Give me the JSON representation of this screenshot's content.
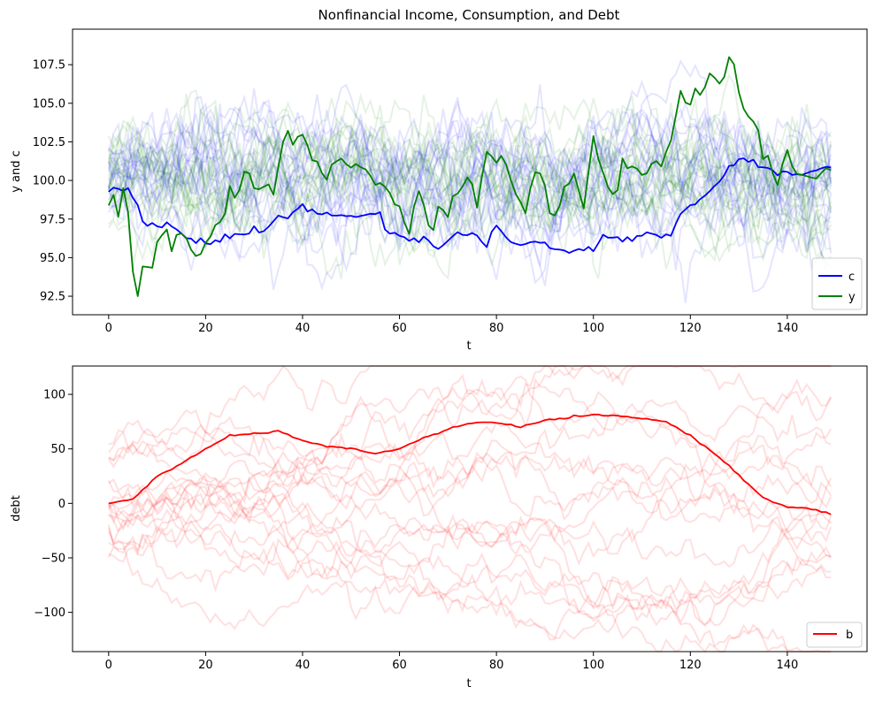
{
  "chart_data": [
    {
      "type": "line",
      "title": "Nonfinancial Income, Consumption, and Debt",
      "xlabel": "t",
      "ylabel": "y and c",
      "xlim": [
        -7.45,
        156.45
      ],
      "ylim": [
        91.3,
        109.8
      ],
      "xticks": [
        0,
        20,
        40,
        60,
        80,
        100,
        120,
        140
      ],
      "xtick_labels": [
        "0",
        "20",
        "40",
        "60",
        "80",
        "100",
        "120",
        "140"
      ],
      "yticks": [
        92.5,
        95.0,
        97.5,
        100.0,
        102.5,
        105.0,
        107.5
      ],
      "ytick_labels": [
        "92.5",
        "95.0",
        "97.5",
        "100.0",
        "102.5",
        "105.0",
        "107.5"
      ],
      "grid": false,
      "legend_position": "lower-right",
      "series": [
        {
          "name": "c",
          "color": "#0000ff",
          "x_start": 0,
          "x_step": 1,
          "knots": [
            [
              0,
              99.5
            ],
            [
              3,
              99.5
            ],
            [
              5,
              98.8
            ],
            [
              8,
              97.0
            ],
            [
              12,
              97.2
            ],
            [
              18,
              96.0
            ],
            [
              20,
              95.9
            ],
            [
              22,
              96.0
            ],
            [
              30,
              96.8
            ],
            [
              32,
              96.6
            ],
            [
              34,
              97.4
            ],
            [
              40,
              98.2
            ],
            [
              45,
              97.7
            ],
            [
              50,
              97.7
            ],
            [
              55,
              98.1
            ],
            [
              58,
              96.5
            ],
            [
              62,
              96.0
            ],
            [
              65,
              96.2
            ],
            [
              68,
              95.7
            ],
            [
              72,
              96.6
            ],
            [
              76,
              96.3
            ],
            [
              78,
              95.7
            ],
            [
              80,
              97.2
            ],
            [
              82,
              96.3
            ],
            [
              86,
              95.6
            ],
            [
              88,
              95.9
            ],
            [
              90,
              96.1
            ],
            [
              92,
              95.6
            ],
            [
              94,
              95.5
            ],
            [
              100,
              95.6
            ],
            [
              102,
              96.5
            ],
            [
              104,
              96.2
            ],
            [
              106,
              95.9
            ],
            [
              108,
              96.4
            ],
            [
              112,
              96.5
            ],
            [
              116,
              96.5
            ],
            [
              118,
              97.6
            ],
            [
              122,
              98.8
            ],
            [
              126,
              100.0
            ],
            [
              130,
              101.4
            ],
            [
              134,
              101.0
            ],
            [
              138,
              100.5
            ],
            [
              142,
              100.4
            ],
            [
              146,
              100.7
            ],
            [
              149,
              100.9
            ]
          ]
        },
        {
          "name": "y",
          "color": "#008000",
          "x_start": 0,
          "x_step": 1,
          "knots": [
            [
              0,
              98.7
            ],
            [
              1,
              98.9
            ],
            [
              2,
              97.9
            ],
            [
              3,
              99.8
            ],
            [
              4,
              98.7
            ],
            [
              5,
              94.7
            ],
            [
              6,
              92.8
            ],
            [
              7,
              94.5
            ],
            [
              8,
              93.6
            ],
            [
              9,
              94.5
            ],
            [
              10,
              96.0
            ],
            [
              12,
              96.4
            ],
            [
              13,
              95.5
            ],
            [
              14,
              96.5
            ],
            [
              15,
              96.7
            ],
            [
              17,
              95.6
            ],
            [
              18,
              94.7
            ],
            [
              20,
              95.7
            ],
            [
              24,
              98.4
            ],
            [
              26,
              99.5
            ],
            [
              28,
              100.3
            ],
            [
              30,
              100.0
            ],
            [
              32,
              99.5
            ],
            [
              34,
              98.8
            ],
            [
              36,
              102.8
            ],
            [
              38,
              102.6
            ],
            [
              40,
              103.2
            ],
            [
              42,
              101.3
            ],
            [
              44,
              100.2
            ],
            [
              46,
              100.8
            ],
            [
              48,
              101.9
            ],
            [
              50,
              100.9
            ],
            [
              52,
              101.3
            ],
            [
              54,
              100.2
            ],
            [
              56,
              100.0
            ],
            [
              58,
              99.1
            ],
            [
              60,
              97.5
            ],
            [
              62,
              96.1
            ],
            [
              64,
              99.3
            ],
            [
              66,
              97.1
            ],
            [
              68,
              98.1
            ],
            [
              70,
              97.7
            ],
            [
              72,
              99.6
            ],
            [
              74,
              100.6
            ],
            [
              76,
              98.7
            ],
            [
              78,
              101.6
            ],
            [
              80,
              102.0
            ],
            [
              82,
              100.7
            ],
            [
              84,
              99.1
            ],
            [
              86,
              98.1
            ],
            [
              88,
              100.2
            ],
            [
              90,
              99.5
            ],
            [
              92,
              97.9
            ],
            [
              94,
              99.3
            ],
            [
              96,
              100.2
            ],
            [
              98,
              98.0
            ],
            [
              100,
              103.0
            ],
            [
              102,
              100.2
            ],
            [
              104,
              99.0
            ],
            [
              106,
              101.3
            ],
            [
              108,
              100.6
            ],
            [
              110,
              101.2
            ],
            [
              114,
              101.0
            ],
            [
              116,
              102.5
            ],
            [
              118,
              105.6
            ],
            [
              120,
              105.1
            ],
            [
              122,
              105.7
            ],
            [
              124,
              106.8
            ],
            [
              126,
              106.4
            ],
            [
              128,
              107.7
            ],
            [
              130,
              105.4
            ],
            [
              132,
              104.3
            ],
            [
              134,
              102.3
            ],
            [
              136,
              101.0
            ],
            [
              138,
              99.5
            ],
            [
              140,
              101.5
            ],
            [
              142,
              100.5
            ],
            [
              144,
              100.6
            ],
            [
              146,
              100.0
            ],
            [
              148,
              101.0
            ],
            [
              149,
              100.7
            ]
          ]
        }
      ],
      "background_paths": {
        "count": 20,
        "length": 150,
        "colors": [
          "#0000ff",
          "#008000"
        ],
        "opacity": 0.1,
        "center": 100,
        "spread": 3.2
      }
    },
    {
      "type": "line",
      "title": "",
      "xlabel": "t",
      "ylabel": "debt",
      "xlim": [
        -7.45,
        156.45
      ],
      "ylim": [
        -136,
        126
      ],
      "xticks": [
        0,
        20,
        40,
        60,
        80,
        100,
        120,
        140
      ],
      "xtick_labels": [
        "0",
        "20",
        "40",
        "60",
        "80",
        "100",
        "120",
        "140"
      ],
      "yticks": [
        -100,
        -50,
        0,
        50,
        100
      ],
      "ytick_labels": [
        "−100",
        "−50",
        "0",
        "50",
        "100"
      ],
      "grid": false,
      "legend_position": "lower-right",
      "series": [
        {
          "name": "b",
          "color": "#ff0000",
          "x_start": 0,
          "x_step": 1,
          "knots": [
            [
              0,
              0
            ],
            [
              5,
              4
            ],
            [
              10,
              25
            ],
            [
              15,
              36
            ],
            [
              20,
              50
            ],
            [
              25,
              62
            ],
            [
              30,
              64
            ],
            [
              35,
              66
            ],
            [
              40,
              58
            ],
            [
              45,
              52
            ],
            [
              50,
              50
            ],
            [
              55,
              46
            ],
            [
              60,
              50
            ],
            [
              65,
              60
            ],
            [
              70,
              68
            ],
            [
              75,
              74
            ],
            [
              80,
              74
            ],
            [
              85,
              70
            ],
            [
              90,
              76
            ],
            [
              95,
              79
            ],
            [
              100,
              81
            ],
            [
              105,
              80
            ],
            [
              110,
              78
            ],
            [
              115,
              75
            ],
            [
              120,
              62
            ],
            [
              125,
              46
            ],
            [
              130,
              26
            ],
            [
              135,
              5
            ],
            [
              140,
              -3
            ],
            [
              145,
              -5
            ],
            [
              149,
              -10
            ]
          ]
        }
      ],
      "background_paths": {
        "count": 20,
        "length": 150,
        "colors": [
          "#ff0000"
        ],
        "opacity": 0.12,
        "center": 0,
        "spread": 70
      }
    }
  ]
}
